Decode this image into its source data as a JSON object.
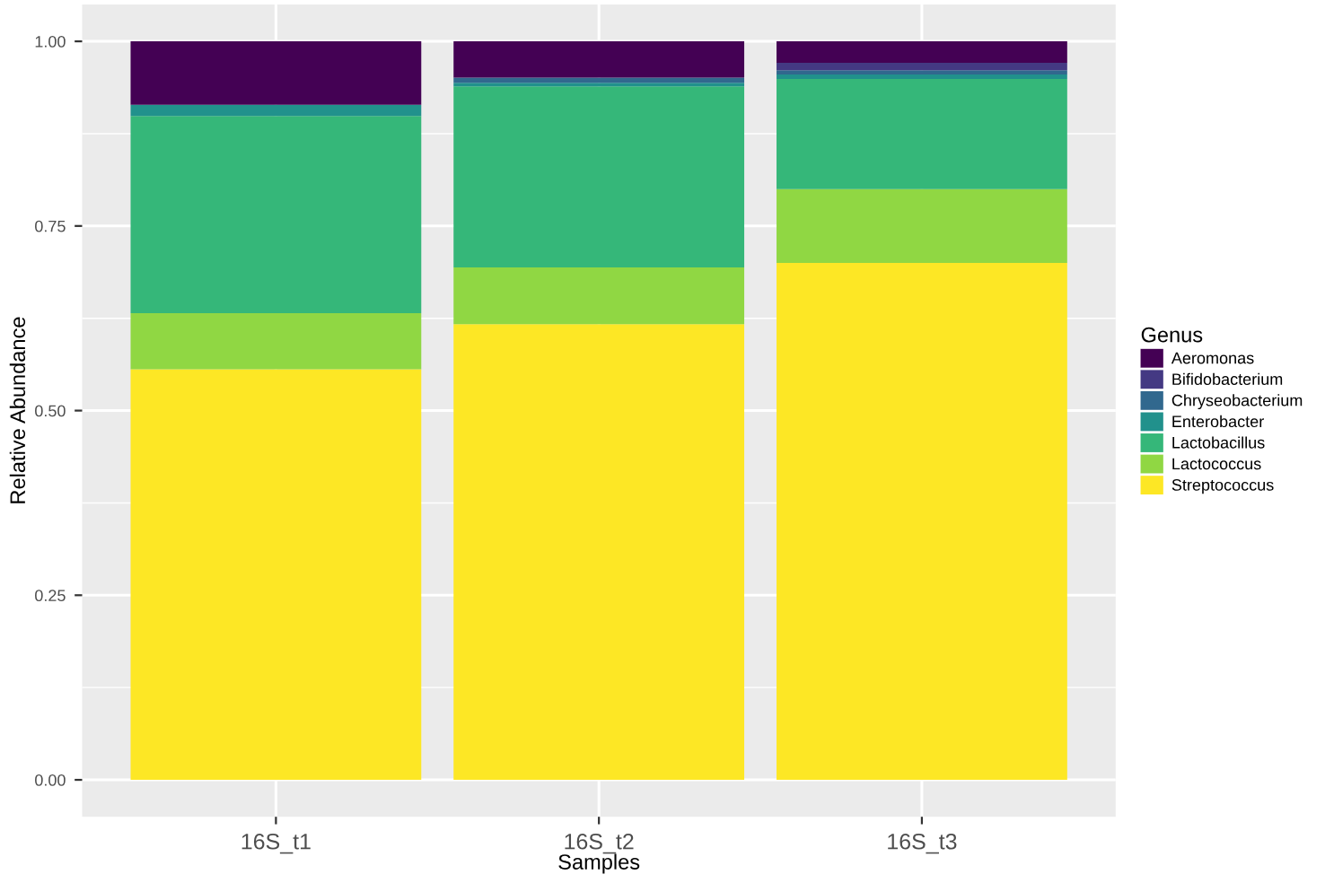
{
  "chart_data": {
    "type": "bar",
    "stacked": true,
    "xlabel": "Samples",
    "ylabel": "Relative Abundance",
    "legend_title": "Genus",
    "legend": "right",
    "grid": true,
    "categories": [
      "16S_t1",
      "16S_t2",
      "16S_t3"
    ],
    "series": [
      {
        "name": "Streptococcus",
        "color": "#fde725",
        "values": [
          0.556,
          0.617,
          0.7
        ]
      },
      {
        "name": "Lactococcus",
        "color": "#90d743",
        "values": [
          0.076,
          0.077,
          0.1
        ]
      },
      {
        "name": "Lactobacillus",
        "color": "#35b779",
        "values": [
          0.267,
          0.245,
          0.149
        ]
      },
      {
        "name": "Enterobacter",
        "color": "#21918c",
        "values": [
          0.015,
          0.005,
          0.006
        ]
      },
      {
        "name": "Chryseobacterium",
        "color": "#31688e",
        "values": [
          0,
          0.007,
          0.006
        ]
      },
      {
        "name": "Bifidobacterium",
        "color": "#443983",
        "values": [
          0,
          0,
          0.01
        ]
      },
      {
        "name": "Aeromonas",
        "color": "#440154",
        "values": [
          0.086,
          0.049,
          0.029
        ]
      }
    ],
    "ylim": [
      -0.05,
      1.05
    ],
    "yticks": [
      {
        "value": 0,
        "label": "0.00"
      },
      {
        "value": 0.25,
        "label": "0.25"
      },
      {
        "value": 0.5,
        "label": "0.50"
      },
      {
        "value": 0.75,
        "label": "0.75"
      },
      {
        "value": 1,
        "label": "1.00"
      }
    ]
  }
}
